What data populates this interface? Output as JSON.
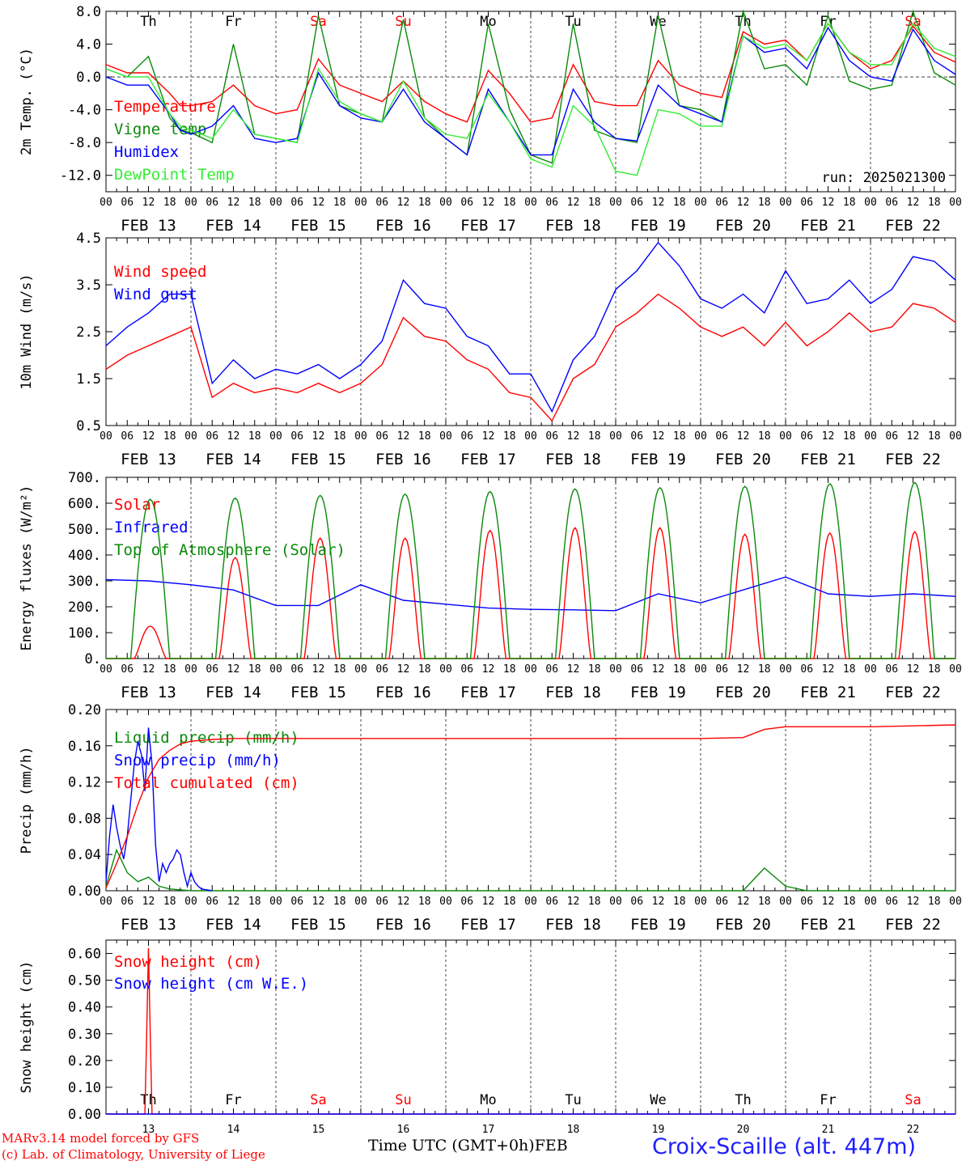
{
  "footer": {
    "credit_line1": "MARv3.14 model forced by GFS",
    "credit_line2": "(c) Lab. of Climatology, University of Liege",
    "x_title": "Time UTC (GMT+0h)",
    "x_month": "FEB",
    "site": "Croix-Scaille (alt. 447m)"
  },
  "colors": {
    "red": "#ff0000",
    "darkgreen": "#0a8a0a",
    "blue": "#0000ff",
    "lightgreen": "#33ee33",
    "black": "#000000"
  },
  "chart_data": [
    {
      "type": "line",
      "id": "temperature",
      "ylabel": "2m Temp. (°C)",
      "ylim": [
        -14,
        8
      ],
      "yticks": [
        "8.0",
        "4.0",
        "0.0",
        "-4.0",
        "-8.0",
        "-12.0"
      ],
      "ytick_values": [
        8,
        4,
        0,
        -4,
        -8,
        -12
      ],
      "zero_line": true,
      "annotation": "run: 2025021300",
      "x_unit": "hours since 2025-02-13 00 UTC",
      "xlim": [
        0,
        240
      ],
      "day_labels": [
        "Th",
        "Fr",
        "Sa",
        "Su",
        "Mo",
        "Tu",
        "We",
        "Th",
        "Fr",
        "Sa"
      ],
      "day_label_colors": [
        "black",
        "black",
        "red",
        "red",
        "black",
        "black",
        "black",
        "black",
        "black",
        "red"
      ],
      "date_labels": [
        "FEB 13",
        "FEB 14",
        "FEB 15",
        "FEB 16",
        "FEB 17",
        "FEB 18",
        "FEB 19",
        "FEB 20",
        "FEB 21",
        "FEB 22"
      ],
      "hour_ticks": [
        "00",
        "06",
        "12",
        "18"
      ],
      "series": [
        {
          "name": "Temperature",
          "color": "red",
          "x": [
            0,
            6,
            12,
            18,
            21,
            24,
            30,
            36,
            42,
            48,
            54,
            60,
            66,
            72,
            78,
            84,
            90,
            96,
            102,
            108,
            114,
            120,
            126,
            132,
            138,
            144,
            150,
            156,
            162,
            168,
            174,
            180,
            186,
            192,
            198,
            204,
            210,
            216,
            222,
            228,
            234,
            240
          ],
          "y": [
            1.5,
            0.5,
            0.5,
            -2,
            -3.5,
            -3.5,
            -3,
            -1,
            -3.5,
            -4.5,
            -4,
            2.2,
            -1,
            -2,
            -3,
            -0.5,
            -3,
            -4.5,
            -5.5,
            0.8,
            -2,
            -5.5,
            -5,
            1.5,
            -3,
            -3.5,
            -3.5,
            2,
            -1,
            -2,
            -2.5,
            5.5,
            4,
            4.5,
            2,
            6.5,
            3,
            1,
            2,
            6.2,
            3,
            1.8
          ]
        },
        {
          "name": "Vigne temp",
          "color": "darkgreen",
          "x": [
            0,
            6,
            12,
            18,
            21,
            24,
            30,
            36,
            42,
            48,
            54,
            60,
            66,
            72,
            78,
            84,
            90,
            96,
            102,
            108,
            114,
            120,
            126,
            132,
            138,
            144,
            150,
            156,
            162,
            168,
            174,
            180,
            186,
            192,
            198,
            204,
            210,
            216,
            222,
            228,
            234,
            240
          ],
          "y": [
            1,
            0,
            2.5,
            -5,
            -6.5,
            -6.8,
            -8,
            4,
            -7,
            -7.5,
            -8,
            7.5,
            -3.5,
            -4.5,
            -5.5,
            7,
            -5,
            -7.5,
            -9.5,
            6.5,
            -4,
            -9.5,
            -10.5,
            6.5,
            -6.5,
            -7.5,
            -8,
            7.5,
            -3.5,
            -4,
            -5.5,
            8,
            1,
            1.5,
            -1,
            7.5,
            -0.5,
            -1.5,
            -1,
            8,
            0.5,
            -1
          ]
        },
        {
          "name": "Humidex",
          "color": "blue",
          "x": [
            0,
            6,
            12,
            18,
            21,
            24,
            30,
            36,
            42,
            48,
            54,
            60,
            66,
            72,
            78,
            84,
            90,
            96,
            102,
            108,
            114,
            120,
            126,
            132,
            138,
            144,
            150,
            156,
            162,
            168,
            174,
            180,
            186,
            192,
            198,
            204,
            210,
            216,
            222,
            228,
            234,
            240
          ],
          "y": [
            0,
            -1,
            -1,
            -4.5,
            -6.5,
            -7,
            -6,
            -3.5,
            -7.5,
            -8,
            -7.5,
            0.5,
            -3.5,
            -5,
            -5.5,
            -1.5,
            -5.5,
            -7.5,
            -9.5,
            -1.5,
            -5.5,
            -9.5,
            -9.5,
            -1.5,
            -5.5,
            -7.5,
            -7.8,
            -1,
            -3.5,
            -4.5,
            -5.5,
            5,
            3,
            3.5,
            1,
            6,
            2,
            0,
            -0.5,
            5.8,
            2,
            0.3
          ]
        },
        {
          "name": "DewPoint Temp",
          "color": "lightgreen",
          "x": [
            0,
            6,
            12,
            18,
            21,
            24,
            30,
            36,
            42,
            48,
            54,
            60,
            66,
            72,
            78,
            84,
            90,
            96,
            102,
            108,
            114,
            120,
            126,
            132,
            138,
            144,
            150,
            156,
            162,
            168,
            174,
            180,
            186,
            192,
            198,
            204,
            210,
            216,
            222,
            228,
            234,
            240
          ],
          "y": [
            1,
            0,
            0,
            -4.5,
            -6,
            -6.5,
            -7.5,
            -4,
            -7,
            -7.5,
            -8,
            1,
            -3,
            -4.5,
            -5.5,
            -0.5,
            -5,
            -7,
            -7.5,
            -2,
            -5.5,
            -10,
            -11,
            -3.5,
            -6,
            -11.5,
            -12,
            -4,
            -4.5,
            -6,
            -6,
            5,
            3.5,
            4,
            2,
            6.5,
            3,
            1.5,
            1.5,
            6.5,
            3.5,
            2.5
          ]
        }
      ]
    },
    {
      "type": "line",
      "id": "wind",
      "ylabel": "10m Wind (m/s)",
      "ylim": [
        0.5,
        4.5
      ],
      "yticks": [
        "4.5",
        "3.5",
        "2.5",
        "1.5",
        "0.5"
      ],
      "ytick_values": [
        4.5,
        3.5,
        2.5,
        1.5,
        0.5
      ],
      "x_unit": "hours since 2025-02-13 00 UTC",
      "xlim": [
        0,
        240
      ],
      "date_labels": [
        "FEB 13",
        "FEB 14",
        "FEB 15",
        "FEB 16",
        "FEB 17",
        "FEB 18",
        "FEB 19",
        "FEB 20",
        "FEB 21",
        "FEB 22"
      ],
      "hour_ticks": [
        "00",
        "06",
        "12",
        "18"
      ],
      "series": [
        {
          "name": "Wind speed",
          "color": "red",
          "x": [
            0,
            6,
            12,
            18,
            24,
            30,
            36,
            42,
            48,
            54,
            60,
            66,
            72,
            78,
            84,
            90,
            96,
            102,
            108,
            114,
            120,
            126,
            132,
            138,
            144,
            150,
            156,
            162,
            168,
            174,
            180,
            186,
            192,
            198,
            204,
            210,
            216,
            222,
            228,
            234,
            240
          ],
          "y": [
            1.7,
            2,
            2.2,
            2.4,
            2.6,
            1.1,
            1.4,
            1.2,
            1.3,
            1.2,
            1.4,
            1.2,
            1.4,
            1.8,
            2.8,
            2.4,
            2.3,
            1.9,
            1.7,
            1.2,
            1.1,
            0.6,
            1.5,
            1.8,
            2.6,
            2.9,
            3.3,
            3.0,
            2.6,
            2.4,
            2.6,
            2.2,
            2.7,
            2.2,
            2.5,
            2.9,
            2.5,
            2.6,
            3.1,
            3.0,
            2.7
          ]
        },
        {
          "name": "Wind gust",
          "color": "blue",
          "x": [
            0,
            6,
            12,
            18,
            24,
            30,
            36,
            42,
            48,
            54,
            60,
            66,
            72,
            78,
            84,
            90,
            96,
            102,
            108,
            114,
            120,
            126,
            132,
            138,
            144,
            150,
            156,
            162,
            168,
            174,
            180,
            186,
            192,
            198,
            204,
            210,
            216,
            222,
            228,
            234,
            240
          ],
          "y": [
            2.2,
            2.6,
            2.9,
            3.3,
            3.3,
            1.4,
            1.9,
            1.5,
            1.7,
            1.6,
            1.8,
            1.5,
            1.8,
            2.3,
            3.6,
            3.1,
            3.0,
            2.4,
            2.2,
            1.6,
            1.6,
            0.8,
            1.9,
            2.4,
            3.4,
            3.8,
            4.4,
            3.9,
            3.2,
            3.0,
            3.3,
            2.9,
            3.8,
            3.1,
            3.2,
            3.6,
            3.1,
            3.4,
            4.1,
            4.0,
            3.6
          ]
        }
      ]
    },
    {
      "type": "line",
      "id": "energy",
      "ylabel": "Energy fluxes (W/m²)",
      "ylim": [
        0,
        700
      ],
      "yticks": [
        "700.",
        "600.",
        "500.",
        "400.",
        "300.",
        "200.",
        "100.",
        "0."
      ],
      "ytick_values": [
        700,
        600,
        500,
        400,
        300,
        200,
        100,
        0
      ],
      "x_unit": "hours since 2025-02-13 00 UTC",
      "xlim": [
        0,
        240
      ],
      "date_labels": [
        "FEB 13",
        "FEB 14",
        "FEB 15",
        "FEB 16",
        "FEB 17",
        "FEB 18",
        "FEB 19",
        "FEB 20",
        "FEB 21",
        "FEB 22"
      ],
      "hour_ticks": [
        "00",
        "06",
        "12",
        "18"
      ],
      "series": [
        {
          "name": "Solar",
          "color": "red",
          "daily_peak_values": [
            125,
            390,
            465,
            465,
            495,
            505,
            505,
            480,
            485,
            490
          ]
        },
        {
          "name": "Infrared",
          "color": "blue",
          "x": [
            0,
            12,
            24,
            36,
            48,
            60,
            72,
            84,
            96,
            108,
            120,
            132,
            144,
            156,
            168,
            180,
            192,
            204,
            216,
            228,
            240
          ],
          "y": [
            305,
            300,
            285,
            265,
            205,
            205,
            285,
            225,
            210,
            195,
            190,
            188,
            185,
            250,
            215,
            265,
            315,
            250,
            240,
            250,
            240
          ]
        },
        {
          "name": "Top of Atmosphere (Solar)",
          "color": "darkgreen",
          "daily_peak_values": [
            615,
            620,
            630,
            635,
            645,
            655,
            660,
            665,
            675,
            680
          ]
        }
      ]
    },
    {
      "type": "line",
      "id": "precip",
      "ylabel": "Precip (mm/h)",
      "ylim": [
        0,
        0.2
      ],
      "yticks": [
        "0.20",
        "0.16",
        "0.12",
        "0.08",
        "0.04",
        "0.00"
      ],
      "ytick_values": [
        0.2,
        0.16,
        0.12,
        0.08,
        0.04,
        0
      ],
      "x_unit": "hours since 2025-02-13 00 UTC",
      "xlim": [
        0,
        240
      ],
      "date_labels": [
        "FEB 13",
        "FEB 14",
        "FEB 15",
        "FEB 16",
        "FEB 17",
        "FEB 18",
        "FEB 19",
        "FEB 20",
        "FEB 21",
        "FEB 22"
      ],
      "hour_ticks": [
        "00",
        "06",
        "12",
        "18"
      ],
      "series": [
        {
          "name": "Liquid precip (mm/h)",
          "color": "darkgreen",
          "x": [
            0,
            3,
            6,
            9,
            12,
            15,
            18,
            24,
            30,
            36,
            180,
            186,
            192,
            198,
            204,
            240
          ],
          "y": [
            0.005,
            0.045,
            0.02,
            0.01,
            0.015,
            0.005,
            0.002,
            0,
            0,
            0,
            0,
            0.025,
            0.005,
            0,
            0,
            0
          ]
        },
        {
          "name": "Snow precip (mm/h)",
          "color": "blue",
          "x": [
            0,
            1,
            2,
            3,
            4,
            5,
            6,
            7,
            8,
            9,
            10,
            11,
            12,
            13,
            14,
            15,
            16,
            17,
            18,
            19,
            20,
            21,
            22,
            23,
            24,
            25,
            26,
            27,
            30
          ],
          "y": [
            0.01,
            0.06,
            0.095,
            0.07,
            0.05,
            0.035,
            0.06,
            0.1,
            0.14,
            0.165,
            0.15,
            0.11,
            0.18,
            0.14,
            0.05,
            0.01,
            0.03,
            0.02,
            0.03,
            0.035,
            0.045,
            0.04,
            0.02,
            0.005,
            0.02,
            0.01,
            0.005,
            0.002,
            0
          ]
        },
        {
          "name": "Total cumulated (cm)",
          "color": "red",
          "x": [
            0,
            3,
            6,
            9,
            12,
            15,
            18,
            21,
            24,
            30,
            36,
            48,
            60,
            72,
            96,
            120,
            144,
            168,
            180,
            186,
            192,
            204,
            216,
            228,
            240
          ],
          "y": [
            0.003,
            0.03,
            0.06,
            0.095,
            0.125,
            0.145,
            0.155,
            0.162,
            0.165,
            0.167,
            0.168,
            0.168,
            0.168,
            0.168,
            0.168,
            0.168,
            0.168,
            0.168,
            0.169,
            0.178,
            0.181,
            0.181,
            0.181,
            0.182,
            0.183
          ]
        }
      ]
    },
    {
      "type": "line",
      "id": "snow",
      "ylabel": "Snow height (cm)",
      "ylim": [
        0,
        0.65
      ],
      "yticks": [
        "0.60",
        "0.50",
        "0.40",
        "0.30",
        "0.20",
        "0.10",
        "0.00"
      ],
      "ytick_values": [
        0.6,
        0.5,
        0.4,
        0.3,
        0.2,
        0.1,
        0
      ],
      "x_unit": "hours since 2025-02-13 00 UTC",
      "xlim": [
        0,
        240
      ],
      "day_labels": [
        "Th",
        "Fr",
        "Sa",
        "Su",
        "Mo",
        "Tu",
        "We",
        "Th",
        "Fr",
        "Sa"
      ],
      "day_label_colors": [
        "black",
        "black",
        "red",
        "red",
        "black",
        "black",
        "black",
        "black",
        "black",
        "red"
      ],
      "day_numbers": [
        "13",
        "14",
        "15",
        "16",
        "17",
        "18",
        "19",
        "20",
        "21",
        "22"
      ],
      "series": [
        {
          "name": "Snow height (cm)",
          "color": "red",
          "x": [
            0,
            11,
            11.5,
            12,
            12.5,
            13,
            240
          ],
          "y": [
            0,
            0,
            0.3,
            0.62,
            0.3,
            0,
            0
          ]
        },
        {
          "name": "Snow height (cm W.E.)",
          "color": "blue",
          "x": [
            0,
            240
          ],
          "y": [
            0,
            0
          ]
        }
      ]
    }
  ]
}
